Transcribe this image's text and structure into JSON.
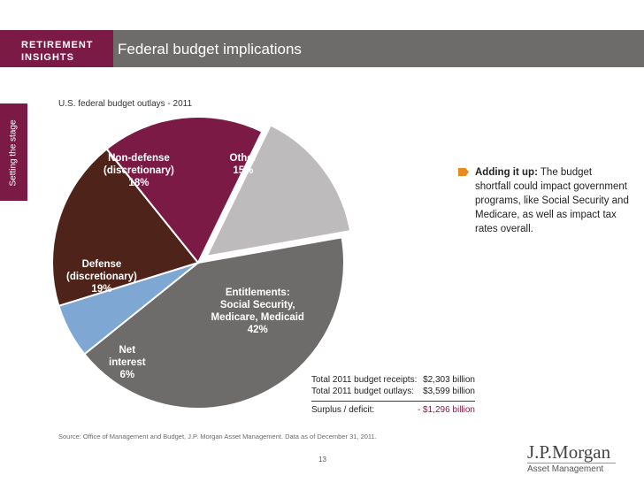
{
  "header": {
    "brand_line1": "RETIREMENT",
    "brand_line2": "INSIGHTS",
    "title": "Federal budget implications"
  },
  "side_tab": {
    "label": "Setting the stage"
  },
  "chart_data": {
    "type": "pie",
    "title": "U.S. federal budget outlays - 2011",
    "slices": [
      {
        "label_lines": [
          "Entitlements:",
          "Social Security,",
          "Medicare, Medicaid"
        ],
        "value": 42,
        "display": "42%",
        "color": "#6e6b6b"
      },
      {
        "label_lines": [
          "Net",
          "interest"
        ],
        "value": 6,
        "display": "6%",
        "color": "#7fa7d3"
      },
      {
        "label_lines": [
          "Defense",
          "(discretionary)"
        ],
        "value": 19,
        "display": "19%",
        "color": "#4e2319"
      },
      {
        "label_lines": [
          "Non-defense",
          "(discretionary)"
        ],
        "value": 18,
        "display": "18%",
        "color": "#7b1a45"
      },
      {
        "label_lines": [
          "Other"
        ],
        "value": 15,
        "display": "15%",
        "color": "#bdbbbb"
      }
    ]
  },
  "totals": {
    "receipts_label": "Total 2011 budget receipts:",
    "receipts_value": "$2,303 billion",
    "outlays_label": "Total 2011 budget outlays:",
    "outlays_value": "$3,599 billion",
    "deficit_label": "Surplus / deficit:",
    "deficit_value": "- $1,296 billion"
  },
  "note": {
    "bold": "Adding it up:",
    "text": " The budget shortfall could impact government programs, like Social Security and Medicare, as well as impact tax rates overall."
  },
  "source": "Source: Office of Management and Budget, J.P. Morgan Asset Management. Data as of December 31, 2011.",
  "page_number": "13",
  "logo": {
    "name": "J.P.Morgan",
    "sub": "Asset Management"
  }
}
